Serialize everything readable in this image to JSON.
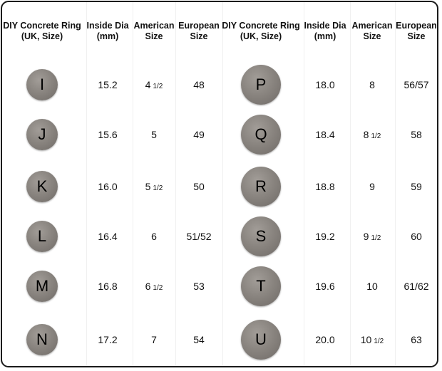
{
  "headers": [
    "DIY Concrete Ring\n(UK, Size)",
    "Inside Dia\n(mm)",
    "American\nSize",
    "European\nSize"
  ],
  "left": [
    {
      "uk": "I",
      "dia": "15.2",
      "us": "4",
      "us_frac": "1/2",
      "eu": "48"
    },
    {
      "uk": "J",
      "dia": "15.6",
      "us": "5",
      "us_frac": "",
      "eu": "49"
    },
    {
      "uk": "K",
      "dia": "16.0",
      "us": "5",
      "us_frac": "1/2",
      "eu": "50"
    },
    {
      "uk": "L",
      "dia": "16.4",
      "us": "6",
      "us_frac": "",
      "eu": "51/52"
    },
    {
      "uk": "M",
      "dia": "16.8",
      "us": "6",
      "us_frac": "1/2",
      "eu": "53"
    },
    {
      "uk": "N",
      "dia": "17.2",
      "us": "7",
      "us_frac": "",
      "eu": "54"
    }
  ],
  "right": [
    {
      "uk": "P",
      "dia": "18.0",
      "us": "8",
      "us_frac": "",
      "eu": "56/57"
    },
    {
      "uk": "Q",
      "dia": "18.4",
      "us": "8",
      "us_frac": "1/2",
      "eu": "58"
    },
    {
      "uk": "R",
      "dia": "18.8",
      "us": "9",
      "us_frac": "",
      "eu": "59"
    },
    {
      "uk": "S",
      "dia": "19.2",
      "us": "9",
      "us_frac": "1/2",
      "eu": "60"
    },
    {
      "uk": "T",
      "dia": "19.6",
      "us": "10",
      "us_frac": "",
      "eu": "61/62"
    },
    {
      "uk": "U",
      "dia": "20.0",
      "us": "10",
      "us_frac": "1/2",
      "eu": "63"
    }
  ]
}
